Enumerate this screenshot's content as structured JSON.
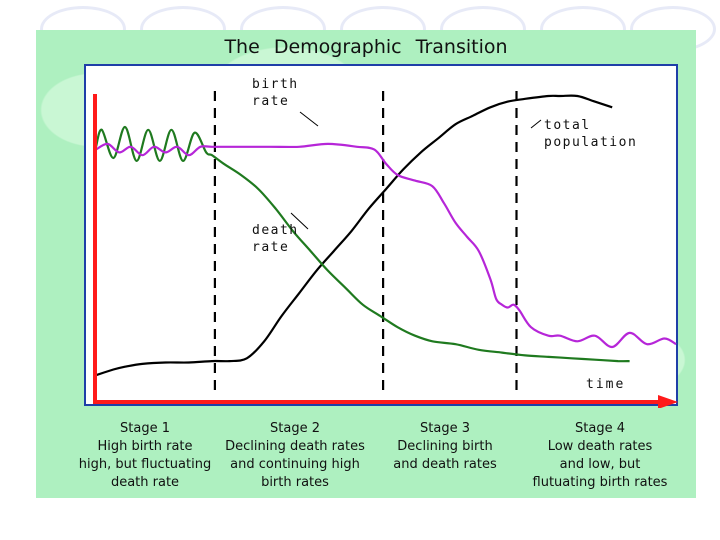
{
  "slide": {
    "title": "The  Demographic  Transition"
  },
  "chart_data": {
    "type": "line",
    "title": "The Demographic Transition",
    "xlabel": "time",
    "ylabel": "",
    "x_range": [
      0,
      100
    ],
    "y_range": [
      0,
      100
    ],
    "colors": {
      "birth_rate": "#b626d8",
      "death_rate": "#1f7a1f",
      "total_population": "#000000",
      "axes": "#ff1a1a",
      "frame": "#1f3fa8",
      "background": "#aef0c0"
    },
    "stage_boundaries": [
      20.5,
      49.5,
      72.5
    ],
    "series": [
      {
        "name": "birth rate",
        "x": [
          0,
          2,
          4,
          6,
          8,
          10,
          12,
          14,
          16,
          18,
          20,
          25,
          30,
          35,
          40,
          45,
          48,
          50,
          52,
          55,
          58,
          60,
          62,
          64,
          66,
          68,
          69,
          70,
          71,
          72,
          73,
          75,
          78,
          80,
          83,
          86,
          89,
          92,
          95,
          98,
          100
        ],
        "y": [
          81,
          83,
          80,
          82,
          79,
          82,
          80,
          82,
          79,
          82,
          82,
          82,
          82,
          82,
          83,
          82,
          81,
          76,
          72,
          70,
          68,
          62,
          55,
          50,
          45,
          35,
          28,
          26,
          25,
          26,
          24,
          18,
          15,
          15,
          13,
          15,
          11,
          16,
          12,
          14,
          12
        ]
      },
      {
        "name": "death rate",
        "x": [
          0,
          1,
          3,
          5,
          7,
          9,
          11,
          13,
          15,
          17,
          19,
          20,
          22,
          25,
          28,
          31,
          34,
          37,
          40,
          43,
          46,
          49,
          52,
          55,
          58,
          62,
          66,
          70,
          74,
          78,
          82,
          86,
          90,
          92
        ],
        "y": [
          82,
          88,
          78,
          89,
          77,
          88,
          77,
          88,
          77,
          87,
          80,
          79,
          76,
          72,
          67,
          60,
          52,
          45,
          38,
          32,
          26,
          22,
          18,
          15,
          13,
          12,
          10,
          9,
          8,
          7.5,
          7,
          6.5,
          6,
          6
        ]
      },
      {
        "name": "total population",
        "x": [
          0,
          3,
          5,
          8,
          12,
          16,
          20,
          23,
          26,
          29,
          32,
          35,
          38,
          41,
          44,
          47,
          50,
          53,
          56,
          59,
          62,
          65,
          68,
          71,
          74,
          78,
          80,
          83,
          86,
          89
        ],
        "y": [
          1,
          3,
          4,
          5,
          5.5,
          5.5,
          6,
          6,
          7,
          13,
          22,
          30,
          38,
          45,
          52,
          60,
          67,
          74,
          80,
          85,
          90,
          93,
          96,
          98,
          99,
          100,
          100,
          100,
          98,
          96
        ]
      }
    ],
    "annotations": [
      {
        "lines": [
          "birth",
          "rate"
        ],
        "points_to": "birth rate"
      },
      {
        "lines": [
          "death",
          "rate"
        ],
        "points_to": "death rate"
      },
      {
        "lines": [
          "total",
          "population"
        ],
        "points_to": "total population"
      }
    ],
    "stages": [
      {
        "lines": [
          "Stage  1",
          "High  birth  rate",
          "high,  but  fluctuating",
          "death  rate"
        ]
      },
      {
        "lines": [
          "Stage  2",
          "Declining  death  rates",
          "and  continuing  high",
          "birth  rates"
        ]
      },
      {
        "lines": [
          "Stage  3",
          "Declining  birth",
          "and  death  rates"
        ]
      },
      {
        "lines": [
          "Stage  4",
          "Low  death  rates",
          "and  low,  but",
          "flutuating  birth  rates"
        ]
      }
    ],
    "legend": "none",
    "grid": false
  }
}
